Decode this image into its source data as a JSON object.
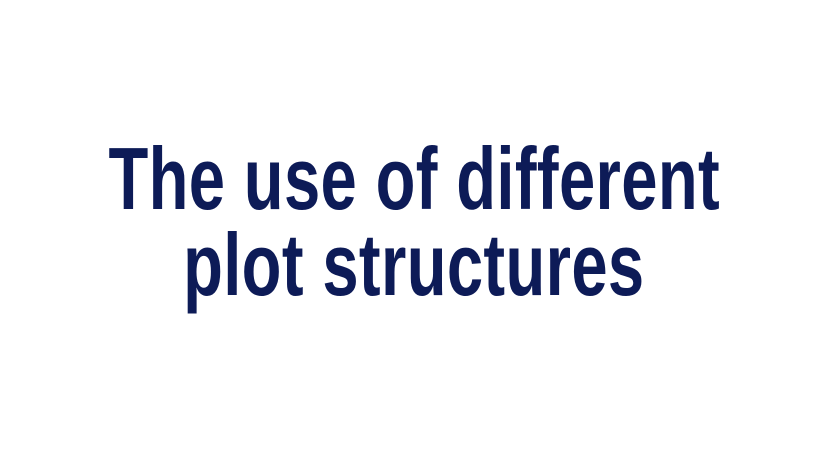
{
  "slide": {
    "title_line_1": "The use of different",
    "title_line_2": "plot structures",
    "text_color": "#0d1b57",
    "background_color": "#ffffff"
  }
}
